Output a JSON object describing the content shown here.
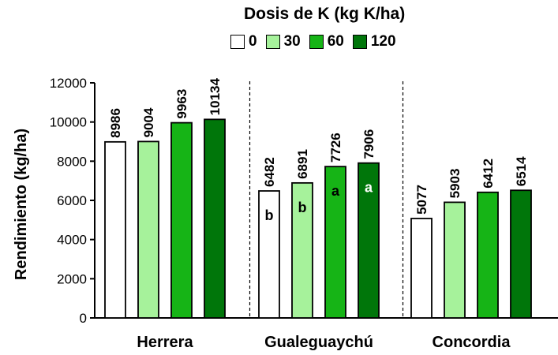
{
  "colors": {
    "axis": "#000000",
    "divider": "#000000"
  },
  "legend": {
    "title": "Dosis de K (kg K/ha)",
    "items": [
      {
        "label": "0",
        "color": "#ffffff"
      },
      {
        "label": "30",
        "color": "#a6f29b"
      },
      {
        "label": "60",
        "color": "#16b416"
      },
      {
        "label": "120",
        "color": "#00760a"
      }
    ]
  },
  "chart_data": {
    "type": "bar",
    "title": "",
    "ylabel": "Rendimiento (kg/ha)",
    "xlabel": "",
    "ylim": [
      0,
      12000
    ],
    "yticks": [
      "0",
      "2000",
      "4000",
      "6000",
      "8000",
      "10000",
      "12000"
    ],
    "legend_title": "Dosis de K (kg K/ha)",
    "legend_position": "top-right",
    "categories": [
      "Herrera",
      "Gualeguaychú",
      "Concordia"
    ],
    "series": [
      {
        "name": "0",
        "color": "#ffffff",
        "values": [
          8986,
          6482,
          5077
        ],
        "data_labels": [
          "8986",
          "6482",
          "5077"
        ],
        "letters": [
          "",
          "b",
          ""
        ]
      },
      {
        "name": "30",
        "color": "#a6f29b",
        "values": [
          9004,
          6891,
          5903
        ],
        "data_labels": [
          "9004",
          "6891",
          "5903"
        ],
        "letters": [
          "",
          "b",
          ""
        ]
      },
      {
        "name": "60",
        "color": "#16b416",
        "values": [
          9963,
          7726,
          6412
        ],
        "data_labels": [
          "9963",
          "7726",
          "6412"
        ],
        "letters": [
          "",
          "a",
          ""
        ]
      },
      {
        "name": "120",
        "color": "#00760a",
        "values": [
          10134,
          7906,
          6514
        ],
        "data_labels": [
          "10134",
          "7906",
          "6514"
        ],
        "letters": [
          "",
          "a",
          ""
        ]
      }
    ],
    "group_separators": true,
    "grid": false
  }
}
